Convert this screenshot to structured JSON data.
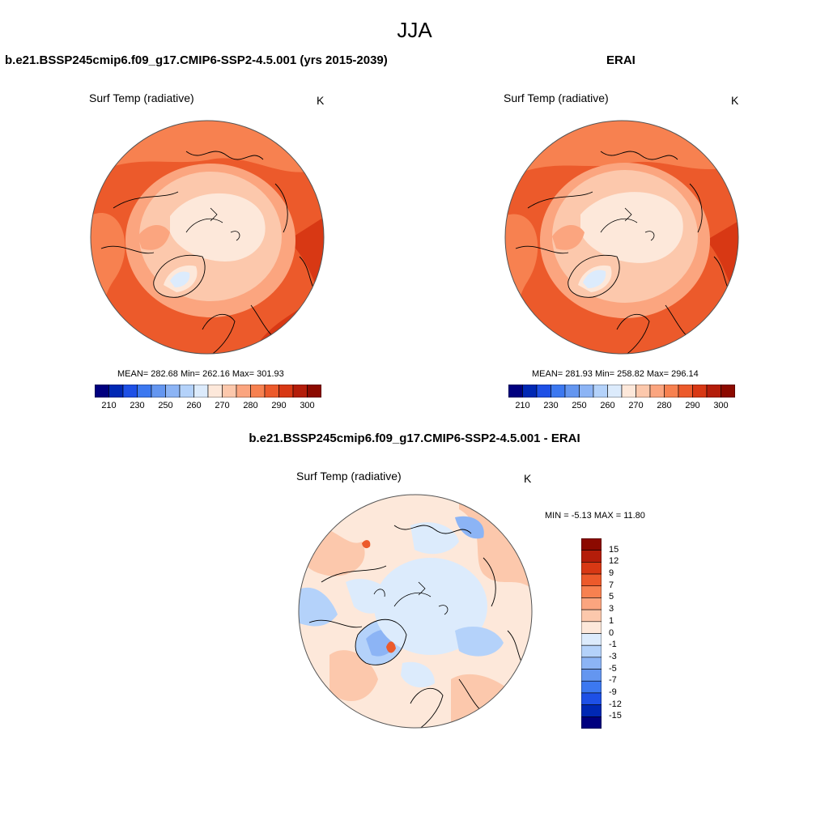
{
  "figure": {
    "title": "JJA"
  },
  "panels": {
    "model": {
      "title": "b.e21.BSSP245cmip6.f09_g17.CMIP6-SSP2-4.5.001 (yrs 2015-2039)",
      "variable": "Surf Temp (radiative)",
      "units": "K",
      "stats": "MEAN= 282.68  Min= 262.16  Max= 301.93"
    },
    "obs": {
      "title": "ERAI",
      "variable": "Surf Temp (radiative)",
      "units": "K",
      "stats": "MEAN= 281.93  Min= 258.82  Max= 296.14"
    },
    "diff": {
      "title": "b.e21.BSSP245cmip6.f09_g17.CMIP6-SSP2-4.5.001 - ERAI",
      "variable": "Surf Temp (radiative)",
      "units": "K",
      "stats": "MIN =  -5.13 MAX =  11.80"
    }
  },
  "colorbars": {
    "abs": {
      "orientation": "horizontal",
      "tick_labels": [
        "210",
        "230",
        "250",
        "260",
        "270",
        "280",
        "290",
        "300"
      ],
      "colors": [
        "#00007f",
        "#0028b4",
        "#1e50e6",
        "#3c78f0",
        "#6496f0",
        "#8cb4f5",
        "#b4d2fa",
        "#dcebfc",
        "#fde8da",
        "#fcc8ac",
        "#fba57f",
        "#f78150",
        "#ec5a2b",
        "#d83814",
        "#b41d0a",
        "#8c0a00"
      ]
    },
    "diff": {
      "orientation": "vertical",
      "tick_labels": [
        "15",
        "12",
        "9",
        "7",
        "5",
        "3",
        "1",
        "0",
        "-1",
        "-3",
        "-5",
        "-7",
        "-9",
        "-12",
        "-15"
      ],
      "colors": [
        "#8c0a00",
        "#b41d0a",
        "#d83814",
        "#ec5a2b",
        "#f78150",
        "#fba57f",
        "#fcc8ac",
        "#fde8da",
        "#dcebfc",
        "#b4d2fa",
        "#8cb4f5",
        "#6496f0",
        "#3c78f0",
        "#1e50e6",
        "#0028b4",
        "#00007f"
      ]
    }
  }
}
